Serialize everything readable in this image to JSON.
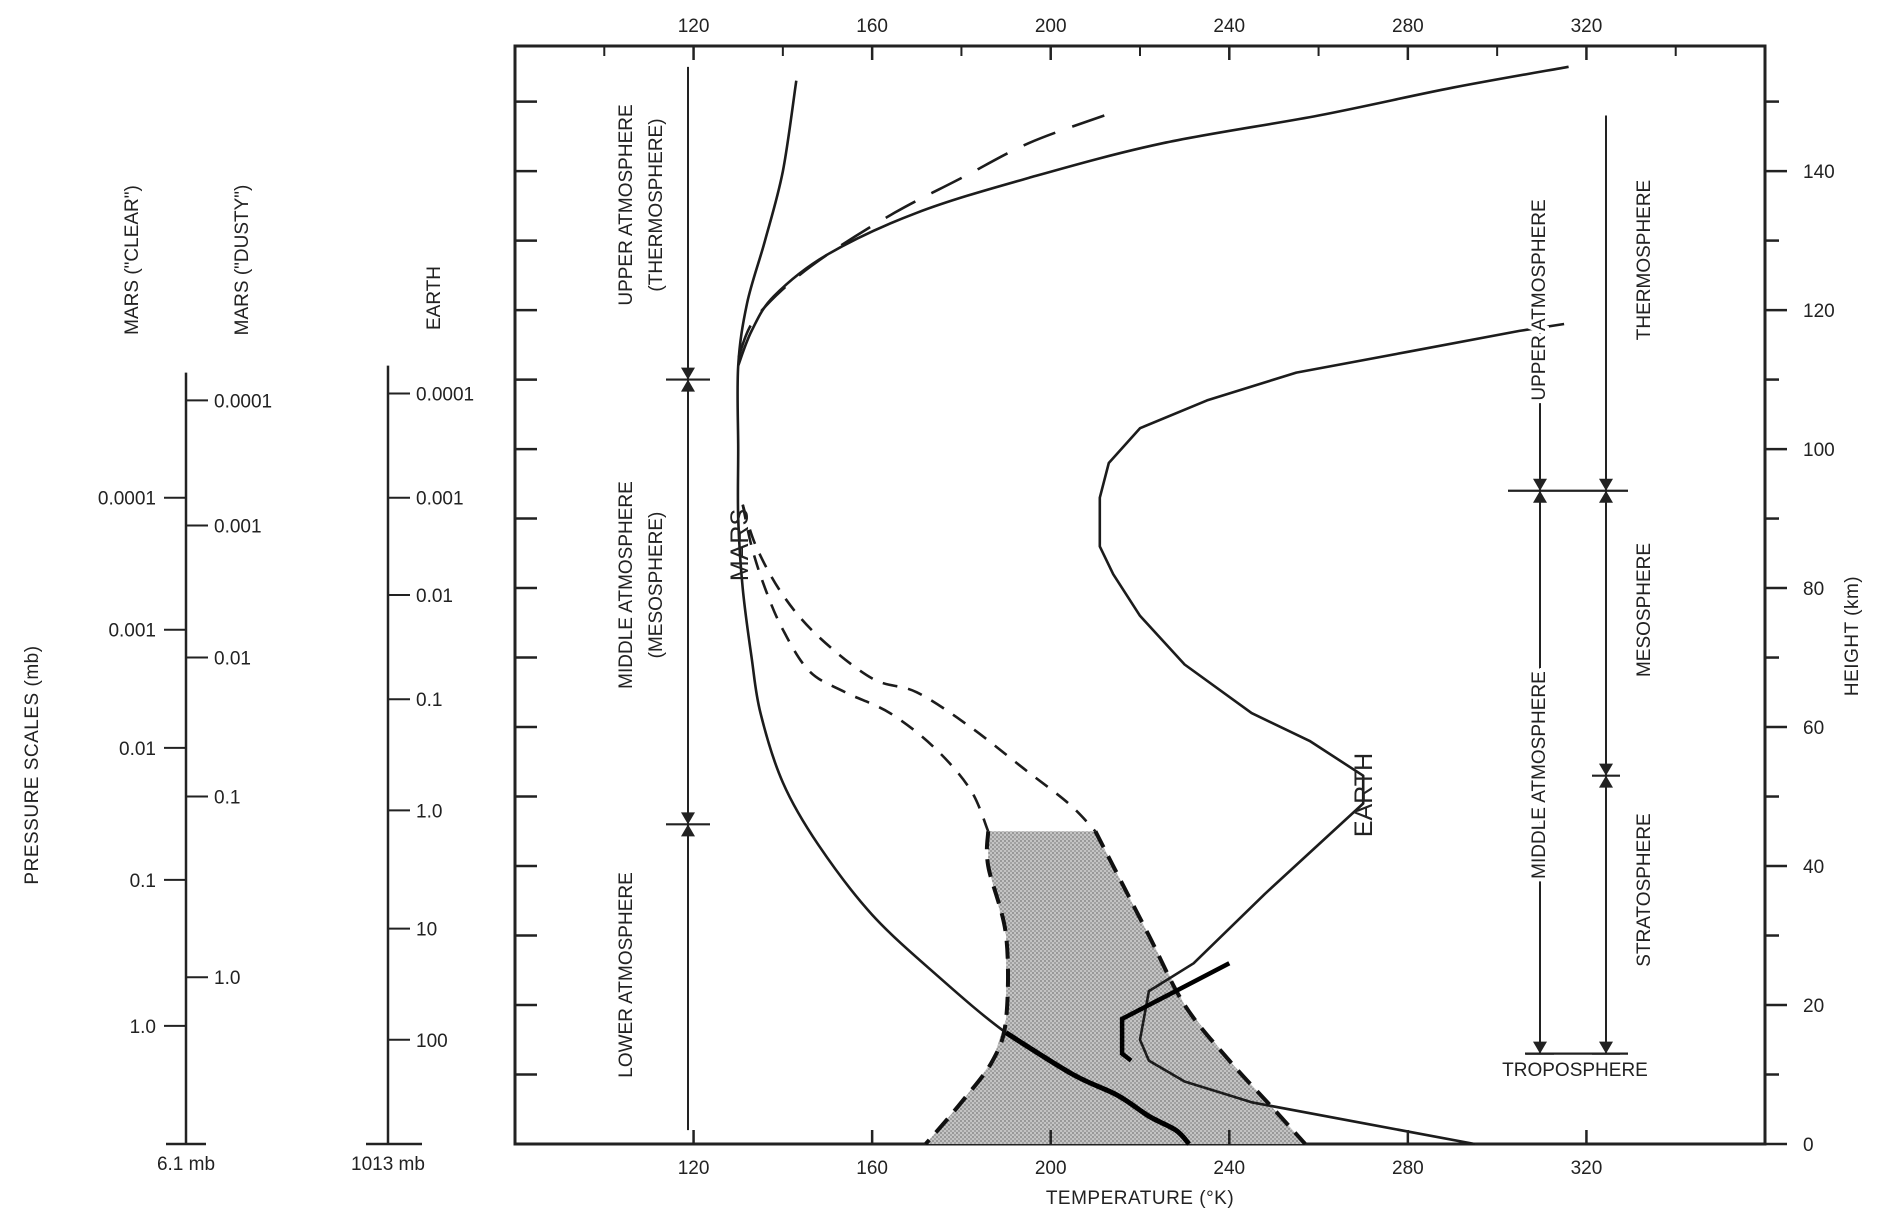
{
  "chart_data": {
    "type": "line",
    "xlabel": "TEMPERATURE (°K)",
    "ylabel": "HEIGHT (km)",
    "ylabel_left": "PRESSURE SCALES (mb)",
    "xlim": [
      80,
      360
    ],
    "ylim": [
      0,
      158
    ],
    "x_ticks": [
      120,
      160,
      200,
      240,
      280,
      320
    ],
    "y_ticks": [
      0,
      20,
      40,
      60,
      80,
      100,
      120,
      140
    ],
    "y_minor_step": 10,
    "grid": false,
    "series": [
      {
        "name": "MARS",
        "style": "solid",
        "x": [
          143,
          140,
          136,
          132,
          130,
          130,
          130,
          131,
          133,
          135,
          140,
          148,
          160,
          175,
          190,
          205,
          215,
          222,
          228,
          231
        ],
        "y": [
          153,
          140,
          130,
          121,
          112,
          100,
          90,
          80,
          70,
          62,
          52,
          43,
          33,
          24,
          16,
          10,
          7,
          4,
          2,
          0
        ]
      },
      {
        "name": "",
        "style": "long-dash",
        "x": [
          212,
          195,
          180,
          165,
          150,
          140,
          133,
          130
        ],
        "y": [
          148,
          144,
          139,
          134,
          128,
          123,
          118,
          113
        ]
      },
      {
        "name": "",
        "style": "solid",
        "x": [
          316,
          290,
          260,
          225,
          195,
          170,
          150,
          138,
          133,
          130
        ],
        "y": [
          155,
          152,
          148,
          144,
          139,
          134,
          128,
          122,
          117,
          112
        ]
      },
      {
        "name": "",
        "style": "dashed",
        "x": [
          131,
          134,
          140,
          148,
          160,
          170,
          182,
          194,
          204,
          210
        ],
        "y": [
          92,
          86,
          79,
          73,
          67,
          65,
          60,
          54,
          49,
          45
        ]
      },
      {
        "name": "",
        "style": "dashed",
        "x": [
          131,
          133,
          136,
          140,
          146,
          154,
          164,
          174,
          182,
          186
        ],
        "y": [
          92,
          86,
          80,
          74,
          68,
          65,
          62,
          57,
          51,
          45
        ]
      },
      {
        "name": "EARTH",
        "style": "solid",
        "x": [
          295,
          270,
          245,
          230,
          222,
          220,
          222,
          232,
          248,
          270,
          270,
          258,
          245,
          230,
          220,
          214,
          211,
          211,
          213,
          220,
          235,
          255,
          280,
          305,
          315
        ],
        "y": [
          0,
          3,
          6,
          9,
          12,
          15,
          22,
          26,
          36,
          49,
          53,
          58,
          62,
          69,
          76,
          82,
          86,
          93,
          98,
          103,
          107,
          111,
          114,
          117,
          118
        ]
      }
    ],
    "shaded_band": {
      "left_x": [
        186,
        186,
        190,
        190,
        187,
        180,
        172
      ],
      "left_y": [
        45,
        40,
        30,
        18,
        12,
        6,
        0
      ],
      "right_x": [
        210,
        214,
        222,
        230,
        240,
        250,
        257
      ],
      "right_y": [
        45,
        40,
        30,
        20,
        12,
        5,
        0
      ]
    },
    "series_labels": {
      "mars": "MARS",
      "earth": "EARTH"
    },
    "mars_regions": {
      "upper": "UPPER ATMOSPHERE",
      "upper_sub": "(THERMOSPHERE)",
      "middle": "MIDDLE ATMOSPHERE",
      "middle_sub": "(MESOSPHERE)",
      "lower": "LOWER ATMOSPHERE",
      "boundaries_km": [
        110,
        46
      ],
      "top_km": 155,
      "bottom_km": 2
    },
    "earth_regions_a": {
      "upper": "UPPER ATMOSPHERE",
      "middle": "MIDDLE ATMOSPHERE",
      "boundaries_km": [
        94,
        13
      ]
    },
    "earth_regions_b": {
      "thermosphere": "THERMOSPHERE",
      "mesosphere": "MESOSPHERE",
      "stratosphere": "STRATOSPHERE",
      "troposphere": "TROPOSPHERE",
      "boundaries_km": [
        94,
        53,
        13
      ]
    },
    "pressure_scales": {
      "mars_clear": {
        "title": "MARS (\"CLEAR\")",
        "labels": [
          "0.0001",
          "0.001",
          "0.01",
          "0.1",
          "1.0"
        ],
        "heights_km": [
          93,
          74,
          57,
          38,
          17
        ],
        "base_label": "6.1 mb"
      },
      "mars_dusty": {
        "title": "MARS (\"DUSTY\")",
        "labels": [
          "0.0001",
          "0.001",
          "0.01",
          "0.1",
          "1.0"
        ],
        "heights_km": [
          107,
          89,
          70,
          50,
          24
        ]
      },
      "earth": {
        "title": "EARTH",
        "labels": [
          "0.0001",
          "0.001",
          "0.01",
          "0.1",
          "1.0",
          "10",
          "100"
        ],
        "heights_km": [
          108,
          93,
          79,
          64,
          48,
          31,
          15
        ],
        "base_label": "1013 mb"
      }
    }
  }
}
